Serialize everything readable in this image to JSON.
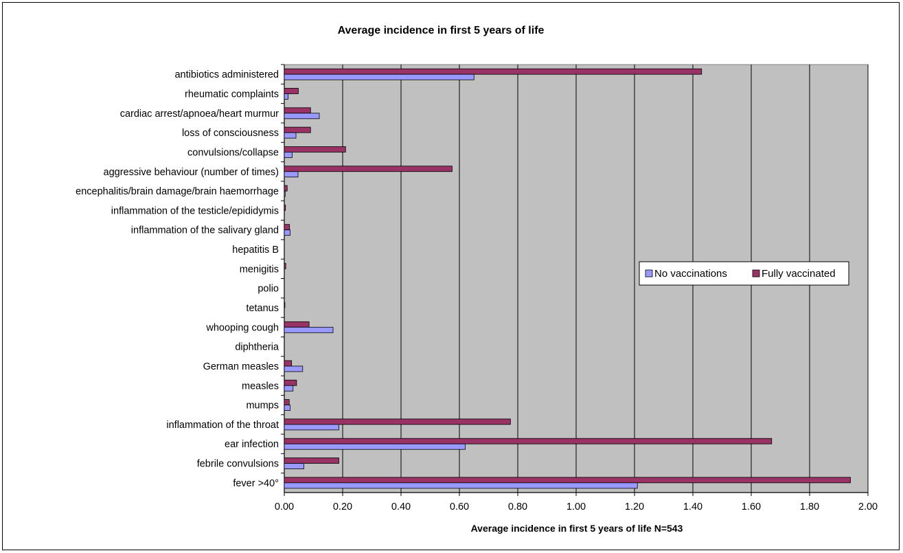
{
  "chart_data": {
    "type": "bar",
    "orientation": "horizontal",
    "title": "Average incidence in first 5 years of life",
    "xlabel": "Average incidence in first 5 years of life N=543",
    "ylabel": "",
    "xlim": [
      0,
      2
    ],
    "x_ticks": [
      "0.00",
      "0.20",
      "0.40",
      "0.60",
      "0.80",
      "1.00",
      "1.20",
      "1.40",
      "1.60",
      "1.80",
      "2.00"
    ],
    "grid": "vertical major gridlines",
    "plot_background": "#c0c0c0",
    "legend_position": "right",
    "categories": [
      "antibiotics administered",
      "rheumatic complaints",
      "cardiac arrest/apnoea/heart murmur",
      "loss of consciousness",
      "convulsions/collapse",
      "aggressive behaviour (number of times)",
      "encephalitis/brain damage/brain haemorrhage",
      "inflammation of the testicle/epididymis",
      "inflammation of the salivary gland",
      "hepatitis B",
      "menigitis",
      "polio",
      "tetanus",
      "whooping cough",
      "diphtheria",
      "German measles",
      "measles",
      "mumps",
      "inflammation of the throat",
      "ear infection",
      "febrile convulsions",
      "fever >40°"
    ],
    "series": [
      {
        "name": "No vaccinations",
        "color": "#9999ff",
        "values": [
          0.65,
          0.013,
          0.12,
          0.04,
          0.027,
          0.047,
          0.003,
          0.0,
          0.02,
          0.0,
          0.0,
          0.0,
          0.0,
          0.167,
          0.0,
          0.063,
          0.03,
          0.02,
          0.187,
          0.62,
          0.067,
          1.21
        ]
      },
      {
        "name": "Fully vaccinated",
        "color": "#993366",
        "values": [
          1.43,
          0.048,
          0.09,
          0.09,
          0.21,
          0.575,
          0.01,
          0.004,
          0.018,
          0.0,
          0.005,
          0.0,
          0.002,
          0.085,
          0.0,
          0.025,
          0.042,
          0.017,
          0.775,
          1.67,
          0.187,
          1.94
        ]
      }
    ]
  }
}
